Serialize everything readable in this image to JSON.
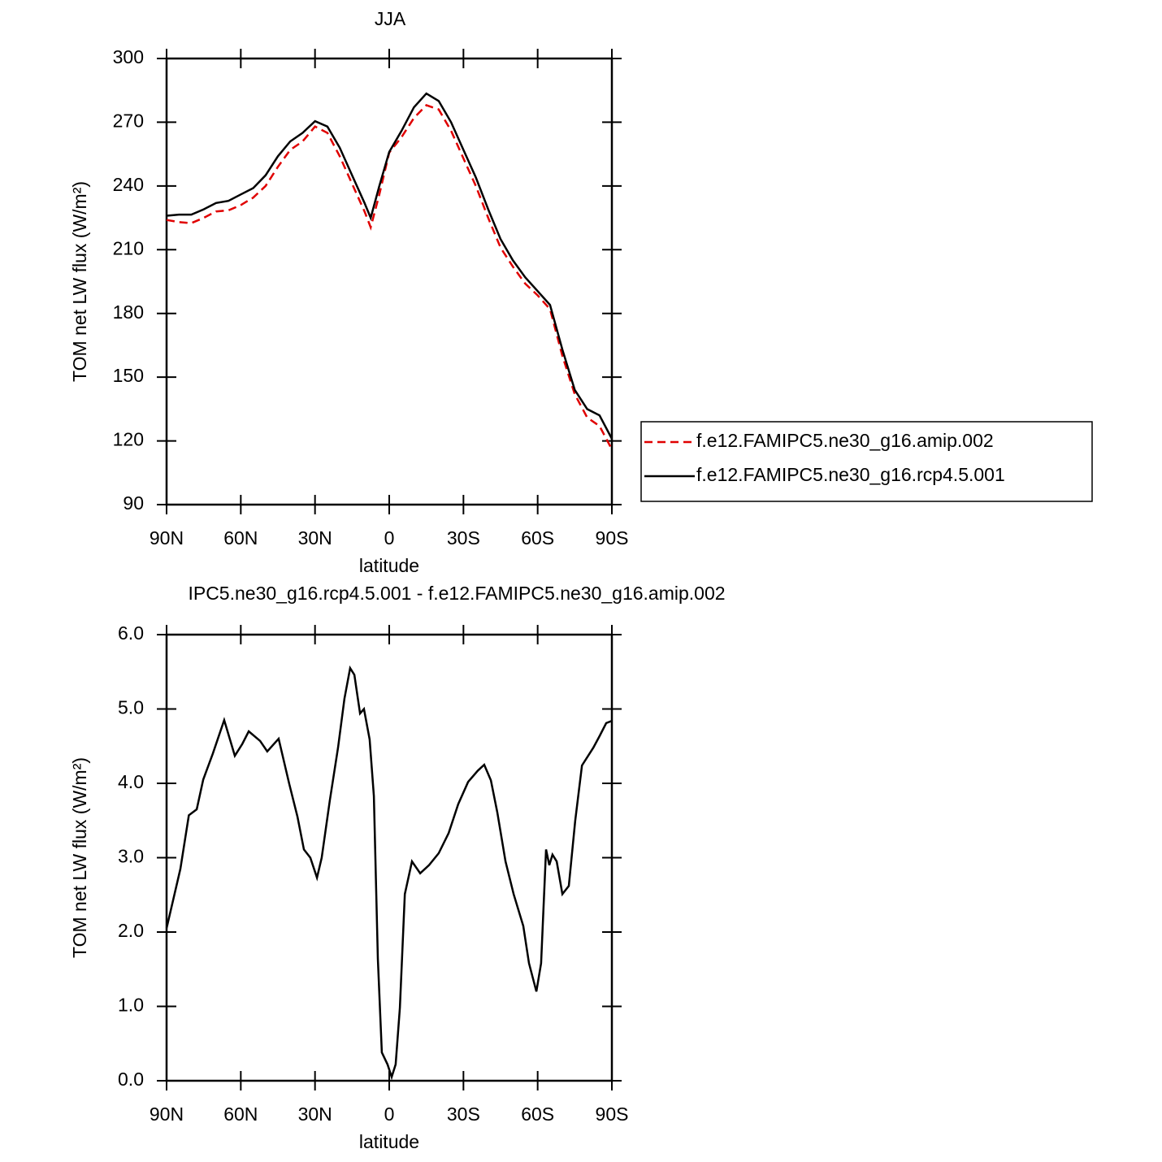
{
  "chart_data": [
    {
      "type": "line",
      "title": "JJA",
      "xlabel": "latitude",
      "ylabel": "TOM net LW flux (W/m²)",
      "x": [
        90,
        85,
        80,
        75,
        70,
        65,
        60,
        55,
        50,
        45,
        40,
        35,
        30,
        25,
        20,
        15,
        10,
        7.5,
        4,
        0,
        -5,
        -10,
        -15,
        -20,
        -25,
        -30,
        -35,
        -40,
        -45,
        -50,
        -55,
        -60,
        -65,
        -70,
        -75,
        -80,
        -85,
        -90
      ],
      "xlim": [
        90,
        -90
      ],
      "xticks": [
        {
          "value": 90,
          "label": "90N"
        },
        {
          "value": 60,
          "label": "60N"
        },
        {
          "value": 30,
          "label": "30N"
        },
        0,
        {
          "value": -30,
          "label": "30S"
        },
        {
          "value": -60,
          "label": "60S"
        },
        {
          "value": -90,
          "label": "90S"
        }
      ],
      "ylim": [
        90,
        300
      ],
      "yticks": [
        90,
        120,
        150,
        180,
        210,
        240,
        270,
        300
      ],
      "legend": "right",
      "series": [
        {
          "name": "f.e12.FAMIPC5.ne30_g16.amip.002",
          "color": "#e00000",
          "style": "dashed",
          "values": [
            224,
            223,
            222.5,
            225,
            228,
            228.5,
            231,
            234.5,
            240,
            249,
            257,
            261,
            268,
            265,
            254,
            241,
            228,
            220.5,
            236,
            255.7,
            263,
            272,
            278,
            276,
            266,
            253,
            240,
            225,
            211,
            202,
            194,
            188.5,
            182,
            160,
            142,
            131,
            127,
            116
          ]
        },
        {
          "name": "f.e12.FAMIPC5.ne30_g16.rcp4.5.001",
          "color": "#000000",
          "style": "solid",
          "values": [
            226,
            226.5,
            226.5,
            229,
            232,
            233,
            236,
            239,
            245,
            254,
            261,
            265,
            270.5,
            268,
            258,
            245,
            232,
            225,
            240,
            256,
            266,
            277,
            283.5,
            280,
            270,
            257,
            244,
            229,
            215,
            205,
            197,
            190.5,
            184,
            163,
            144,
            135,
            132,
            121
          ]
        }
      ]
    },
    {
      "type": "line",
      "title": "IPC5.ne30_g16.rcp4.5.001 - f.e12.FAMIPC5.ne30_g16.amip.002",
      "xlabel": "latitude",
      "ylabel": "TOM net LW flux (W/m²)",
      "x": [
        90,
        84.4,
        81,
        77.8,
        75.2,
        71.3,
        66.7,
        62.4,
        59.4,
        56.8,
        52.2,
        49.3,
        44.7,
        40.4,
        37.1,
        34.5,
        31.9,
        29.2,
        27.3,
        24,
        20.7,
        18.1,
        15.8,
        14.1,
        11.8,
        10.2,
        7.9,
        6.2,
        4.6,
        3,
        0.7,
        -1,
        -2.6,
        -4.3,
        -6.3,
        -9.2,
        -12.5,
        -16.1,
        -20,
        -24,
        -27.9,
        -31.9,
        -35.8,
        -38.4,
        -41.1,
        -43.7,
        -47,
        -50.3,
        -54.2,
        -56.5,
        -59.5,
        -61.4,
        -63.4,
        -64.7,
        -66,
        -67.7,
        -70,
        -72.6,
        -75.2,
        -77.9,
        -82.5,
        -85.1,
        -87.7,
        -90
      ],
      "values": [
        2.05,
        2.85,
        3.57,
        3.65,
        4.05,
        4.4,
        4.85,
        4.37,
        4.53,
        4.7,
        4.57,
        4.43,
        4.6,
        3.99,
        3.55,
        3.11,
        3.0,
        2.73,
        3.0,
        3.77,
        4.48,
        5.14,
        5.55,
        5.46,
        4.94,
        5.0,
        4.59,
        3.83,
        1.64,
        0.38,
        0.22,
        0.05,
        0.22,
        0.98,
        2.51,
        2.95,
        2.79,
        2.9,
        3.06,
        3.33,
        3.72,
        4.02,
        4.17,
        4.25,
        4.04,
        3.61,
        2.95,
        2.51,
        2.08,
        1.58,
        1.2,
        1.58,
        3.11,
        2.9,
        3.04,
        2.95,
        2.51,
        2.62,
        3.5,
        4.24,
        4.48,
        4.64,
        4.81,
        4.84
      ],
      "color": "#000000",
      "xlim": [
        90,
        -90
      ],
      "xticks": [
        {
          "value": 90,
          "label": "90N"
        },
        {
          "value": 60,
          "label": "60N"
        },
        {
          "value": 30,
          "label": "30N"
        },
        0,
        {
          "value": -30,
          "label": "30S"
        },
        {
          "value": -60,
          "label": "60S"
        },
        {
          "value": -90,
          "label": "90S"
        }
      ],
      "ylim": [
        0,
        6
      ],
      "yticks": [
        {
          "value": 0,
          "label": "0.0"
        },
        {
          "value": 1,
          "label": "1.0"
        },
        {
          "value": 2,
          "label": "2.0"
        },
        {
          "value": 3,
          "label": "3.0"
        },
        {
          "value": 4,
          "label": "4.0"
        },
        {
          "value": 5,
          "label": "5.0"
        },
        {
          "value": 6,
          "label": "6.0"
        }
      ]
    }
  ]
}
